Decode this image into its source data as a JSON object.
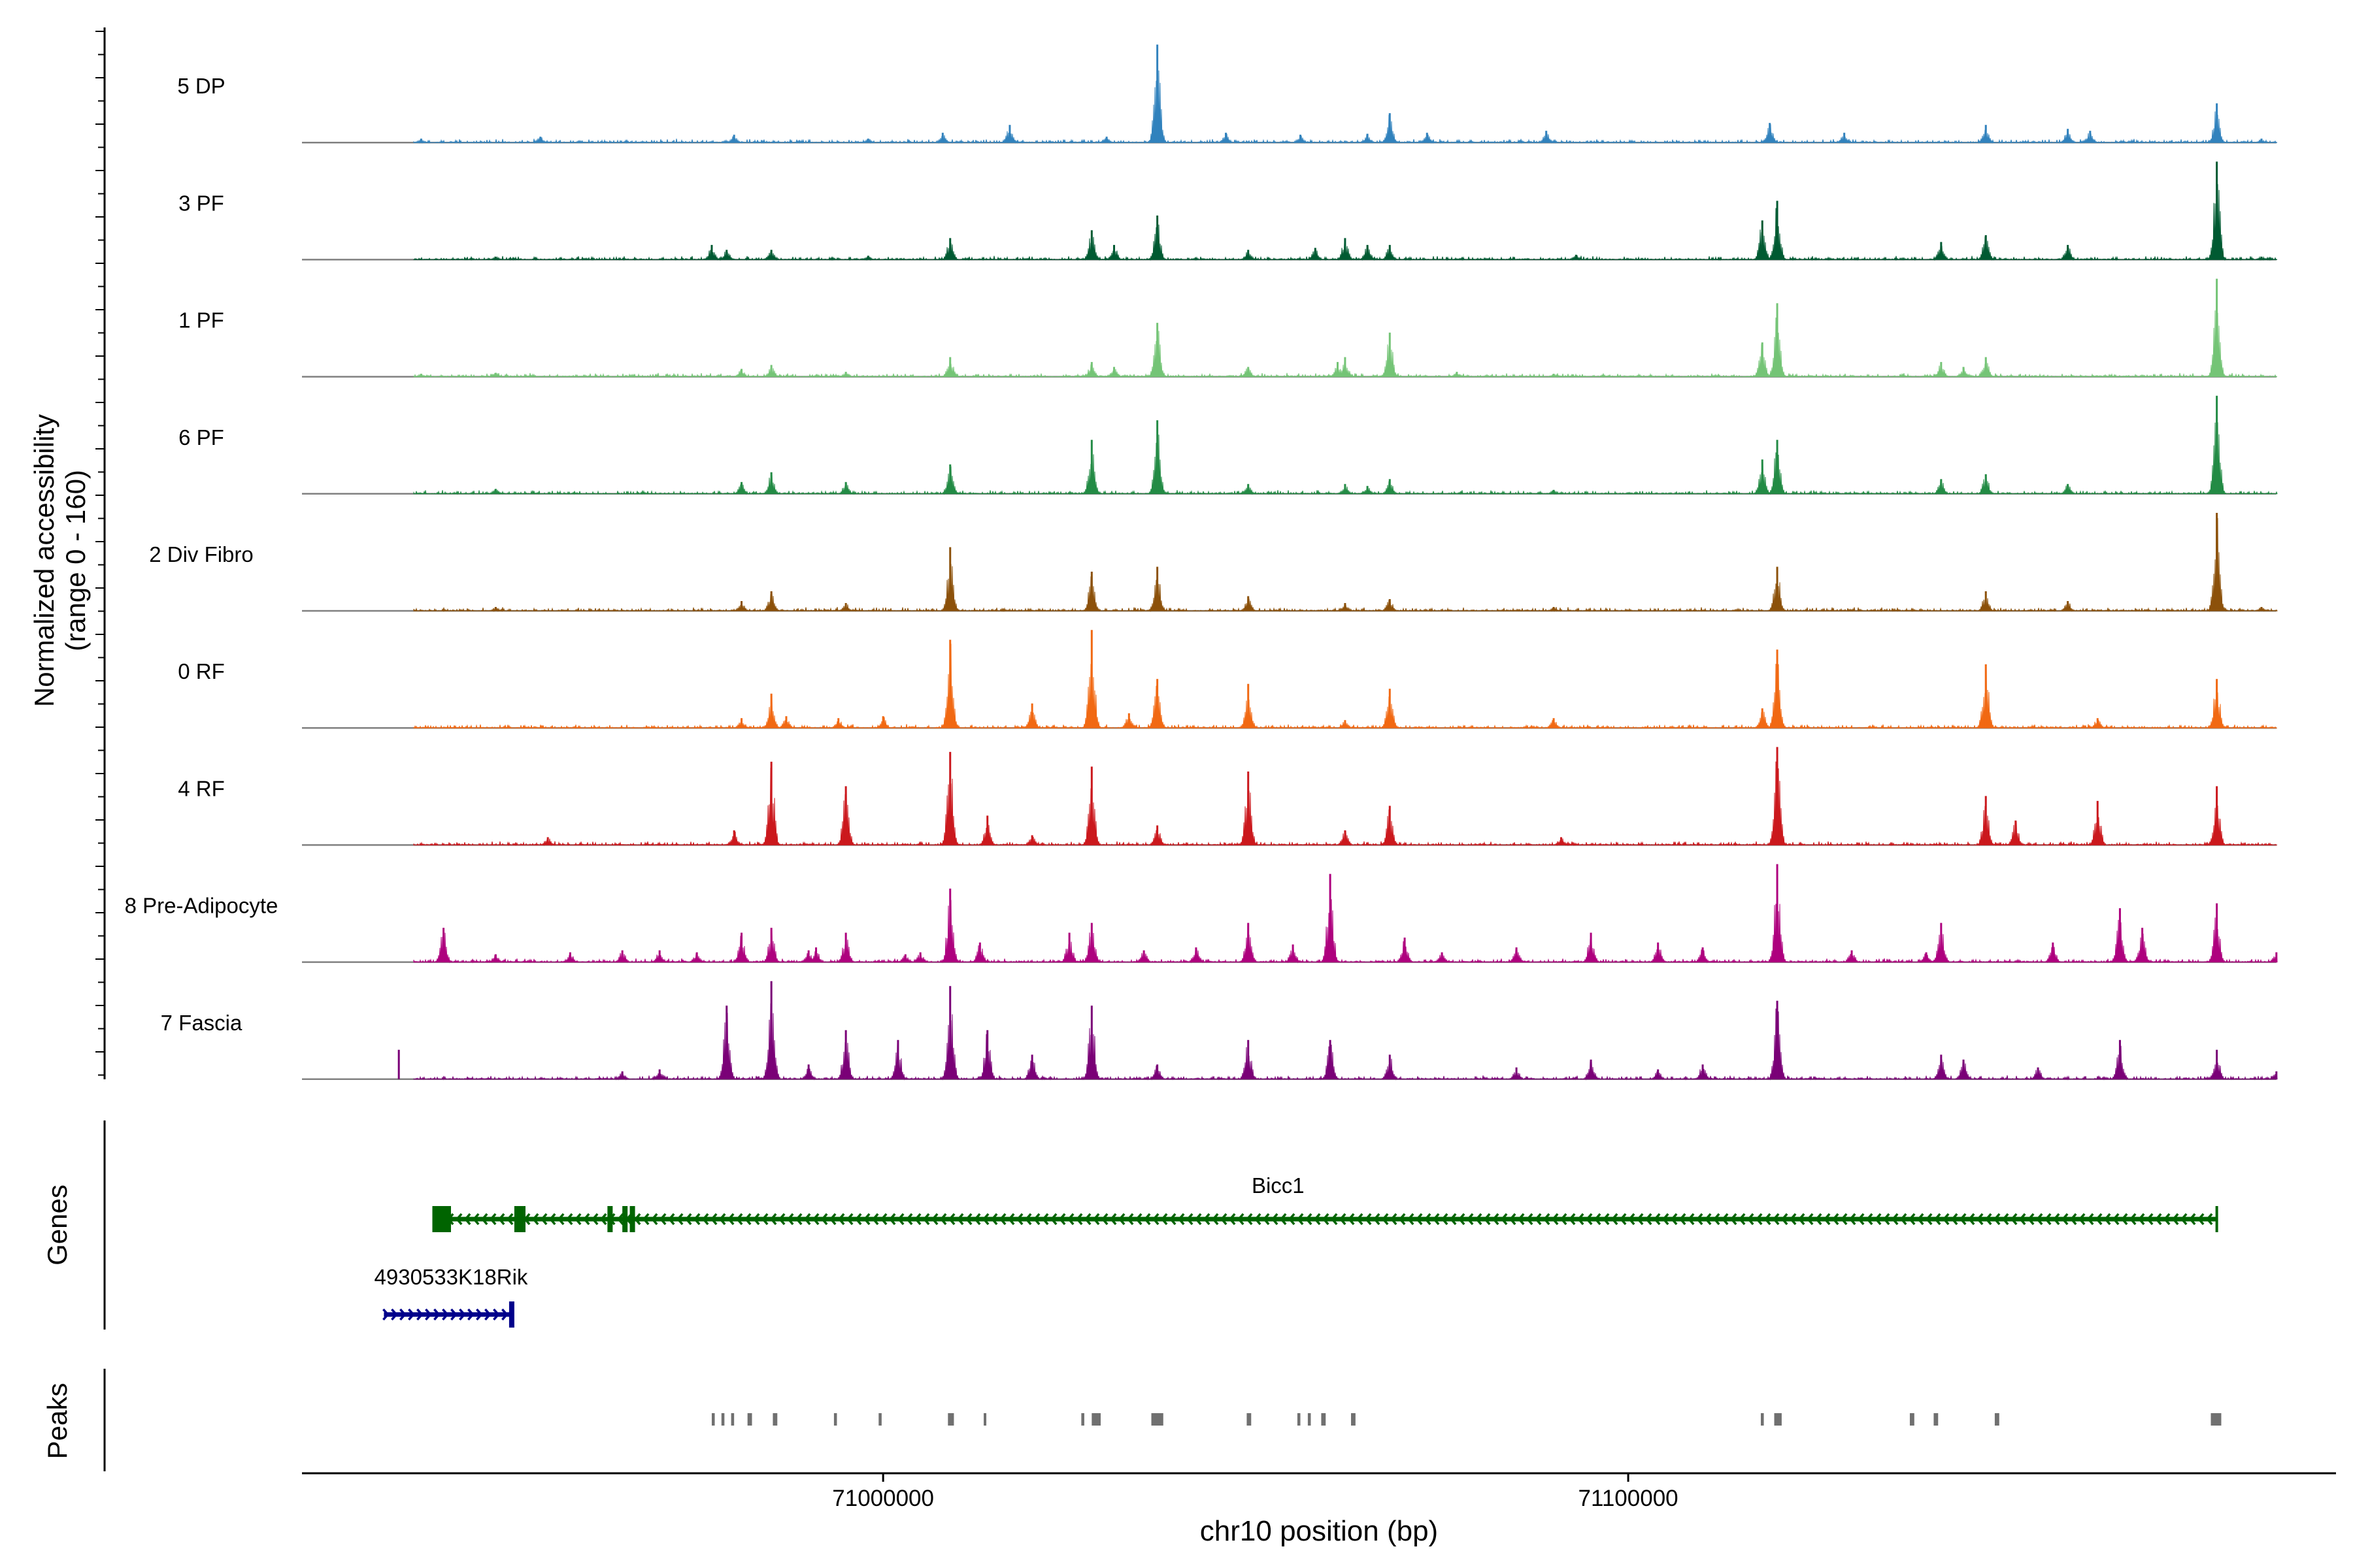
{
  "chart_data": {
    "type": "coverage",
    "xlabel": "chr10 position (bp)",
    "xlim": [
      70922000,
      71195000
    ],
    "x_ticks": [
      {
        "value": 71000000,
        "label": "71000000"
      },
      {
        "value": 71100000,
        "label": "71100000"
      }
    ],
    "y_panels": {
      "coverage_label": [
        "Normalized accessibility",
        "(range 0 - 160)"
      ],
      "coverage_range": [
        0,
        160
      ],
      "genes_label": "Genes",
      "peaks_label": "Peaks"
    },
    "tracks": [
      {
        "name": "5 DP",
        "color": "#3182bd",
        "peaks": [
          [
            71036800,
            100
          ],
          [
            71068000,
            30
          ],
          [
            71179000,
            40
          ],
          [
            71017000,
            18
          ],
          [
            71089000,
            12
          ],
          [
            71008000,
            10
          ],
          [
            71119000,
            20
          ],
          [
            71148000,
            18
          ],
          [
            71159000,
            14
          ],
          [
            71129000,
            10
          ],
          [
            71162000,
            12
          ],
          [
            71046000,
            10
          ],
          [
            71065000,
            9
          ],
          [
            71056000,
            8
          ],
          [
            71073000,
            10
          ],
          [
            70980000,
            8
          ],
          [
            70954000,
            6
          ],
          [
            71030000,
            6
          ],
          [
            70998000,
            4
          ],
          [
            70938000,
            4
          ],
          [
            71185000,
            4
          ]
        ]
      },
      {
        "name": "3 PF",
        "color": "#005a32",
        "peaks": [
          [
            71179000,
            100
          ],
          [
            71120000,
            60
          ],
          [
            71036800,
            45
          ],
          [
            71028000,
            30
          ],
          [
            71118000,
            40
          ],
          [
            71148000,
            25
          ],
          [
            71159000,
            15
          ],
          [
            71142000,
            18
          ],
          [
            71062000,
            22
          ],
          [
            71065000,
            15
          ],
          [
            71068000,
            15
          ],
          [
            71049000,
            10
          ],
          [
            71058000,
            12
          ],
          [
            71009000,
            22
          ],
          [
            70977000,
            15
          ],
          [
            70979000,
            10
          ],
          [
            70985000,
            10
          ],
          [
            71031000,
            15
          ],
          [
            70998000,
            4
          ],
          [
            70948000,
            3
          ],
          [
            71093000,
            5
          ],
          [
            71185000,
            3
          ]
        ]
      },
      {
        "name": "1 PF",
        "color": "#74c476",
        "peaks": [
          [
            71179000,
            100
          ],
          [
            71120000,
            75
          ],
          [
            71036800,
            55
          ],
          [
            71118000,
            35
          ],
          [
            71068000,
            45
          ],
          [
            71061000,
            15
          ],
          [
            71062000,
            20
          ],
          [
            71009000,
            20
          ],
          [
            71028000,
            15
          ],
          [
            71031000,
            10
          ],
          [
            71148000,
            20
          ],
          [
            71145000,
            10
          ],
          [
            71142000,
            15
          ],
          [
            70985000,
            12
          ],
          [
            70981000,
            8
          ],
          [
            70995000,
            5
          ],
          [
            71049000,
            10
          ],
          [
            71077000,
            5
          ],
          [
            70948000,
            4
          ],
          [
            70938000,
            3
          ],
          [
            71090000,
            3
          ]
        ]
      },
      {
        "name": "6 PF",
        "color": "#238b45",
        "peaks": [
          [
            71179000,
            100
          ],
          [
            71120000,
            55
          ],
          [
            71036800,
            75
          ],
          [
            71028000,
            55
          ],
          [
            71118000,
            35
          ],
          [
            71009000,
            30
          ],
          [
            70985000,
            22
          ],
          [
            70981000,
            12
          ],
          [
            70995000,
            12
          ],
          [
            71148000,
            20
          ],
          [
            71142000,
            15
          ],
          [
            71159000,
            10
          ],
          [
            71049000,
            10
          ],
          [
            71062000,
            10
          ],
          [
            71068000,
            15
          ],
          [
            70948000,
            5
          ],
          [
            71065000,
            8
          ],
          [
            71090000,
            4
          ]
        ]
      },
      {
        "name": "2 Div Fibro",
        "color": "#8c510a",
        "peaks": [
          [
            71179000,
            100
          ],
          [
            71120000,
            45
          ],
          [
            71036800,
            45
          ],
          [
            71028000,
            40
          ],
          [
            71009000,
            65
          ],
          [
            70985000,
            20
          ],
          [
            70981000,
            10
          ],
          [
            70995000,
            8
          ],
          [
            71148000,
            20
          ],
          [
            71159000,
            10
          ],
          [
            71049000,
            15
          ],
          [
            71068000,
            12
          ],
          [
            71062000,
            8
          ],
          [
            70948000,
            4
          ],
          [
            71090000,
            4
          ],
          [
            71185000,
            4
          ]
        ]
      },
      {
        "name": "0 RF",
        "color": "#f16913",
        "peaks": [
          [
            71028000,
            100
          ],
          [
            71009000,
            90
          ],
          [
            71120000,
            80
          ],
          [
            71148000,
            65
          ],
          [
            71179000,
            50
          ],
          [
            71036800,
            50
          ],
          [
            71049000,
            45
          ],
          [
            71068000,
            40
          ],
          [
            70985000,
            35
          ],
          [
            71020000,
            25
          ],
          [
            71118000,
            20
          ],
          [
            70987000,
            12
          ],
          [
            70981000,
            10
          ],
          [
            70994000,
            10
          ],
          [
            71000000,
            12
          ],
          [
            71062000,
            8
          ],
          [
            71090000,
            10
          ],
          [
            71163000,
            10
          ],
          [
            71033000,
            15
          ]
        ]
      },
      {
        "name": "4 RF",
        "color": "#cb181d",
        "peaks": [
          [
            71120000,
            100
          ],
          [
            71028000,
            80
          ],
          [
            70985000,
            85
          ],
          [
            71009000,
            95
          ],
          [
            71049000,
            75
          ],
          [
            70995000,
            60
          ],
          [
            71148000,
            50
          ],
          [
            71179000,
            60
          ],
          [
            71163000,
            45
          ],
          [
            71068000,
            40
          ],
          [
            71014000,
            30
          ],
          [
            71036800,
            20
          ],
          [
            70980000,
            15
          ],
          [
            71062000,
            15
          ],
          [
            71152000,
            25
          ],
          [
            70955000,
            8
          ],
          [
            71091000,
            8
          ],
          [
            71020000,
            10
          ]
        ]
      },
      {
        "name": "8 Pre-Adipocyte",
        "color": "#ae017e",
        "peaks": [
          [
            71120000,
            100
          ],
          [
            71060000,
            90
          ],
          [
            71009000,
            75
          ],
          [
            71028000,
            40
          ],
          [
            71049000,
            40
          ],
          [
            70941000,
            35
          ],
          [
            70981000,
            30
          ],
          [
            70985000,
            35
          ],
          [
            70995000,
            30
          ],
          [
            71166000,
            55
          ],
          [
            71169000,
            35
          ],
          [
            71179000,
            60
          ],
          [
            71142000,
            40
          ],
          [
            71095000,
            30
          ],
          [
            71025000,
            30
          ],
          [
            71013000,
            20
          ],
          [
            71070000,
            25
          ],
          [
            71104000,
            20
          ],
          [
            71157000,
            20
          ],
          [
            70965000,
            12
          ],
          [
            71042000,
            15
          ],
          [
            71055000,
            18
          ],
          [
            71110000,
            15
          ],
          [
            71187000,
            10
          ],
          [
            70970000,
            12
          ],
          [
            71085000,
            15
          ],
          [
            71005000,
            10
          ],
          [
            70991000,
            15
          ],
          [
            70975000,
            10
          ],
          [
            70958000,
            10
          ],
          [
            71035000,
            12
          ],
          [
            70948000,
            8
          ],
          [
            70990000,
            12
          ],
          [
            71075000,
            10
          ],
          [
            71130000,
            12
          ],
          [
            71140000,
            10
          ],
          [
            71003000,
            8
          ]
        ]
      },
      {
        "name": "7 Fascia",
        "color": "#7a0177",
        "peaks": [
          [
            70985000,
            100
          ],
          [
            71009000,
            95
          ],
          [
            70979000,
            75
          ],
          [
            71028000,
            75
          ],
          [
            70995000,
            50
          ],
          [
            71014000,
            50
          ],
          [
            71020000,
            25
          ],
          [
            70935000,
            30
          ],
          [
            71120000,
            80
          ],
          [
            71166000,
            40
          ],
          [
            71049000,
            40
          ],
          [
            71060000,
            40
          ],
          [
            71179000,
            30
          ],
          [
            71068000,
            25
          ],
          [
            71002000,
            40
          ],
          [
            71142000,
            25
          ],
          [
            71145000,
            20
          ],
          [
            71095000,
            20
          ],
          [
            71036800,
            15
          ],
          [
            71110000,
            15
          ],
          [
            71104000,
            10
          ],
          [
            70990000,
            15
          ],
          [
            70970000,
            10
          ],
          [
            70965000,
            8
          ],
          [
            71085000,
            12
          ],
          [
            71155000,
            12
          ],
          [
            71187000,
            8
          ]
        ]
      }
    ],
    "genes": [
      {
        "name": "Bicc1",
        "strand": "-",
        "start": 70940000,
        "end": 71179000,
        "color": "#006400",
        "exons": [
          [
            70939500,
            70942000
          ],
          [
            70950500,
            70952000
          ],
          [
            70963000,
            70963700
          ],
          [
            70965000,
            70965700
          ],
          [
            70966000,
            70966600
          ]
        ]
      },
      {
        "name": "4930533K18Rik",
        "strand": "+",
        "start": 70933000,
        "end": 70950000,
        "color": "#00008b",
        "exons": [
          [
            70949800,
            70950200
          ]
        ]
      }
    ],
    "peaks_track": {
      "color": "#707070",
      "regions": [
        [
          70977000,
          70977400
        ],
        [
          70978300,
          70978700
        ],
        [
          70979600,
          70980000
        ],
        [
          70981800,
          70982400
        ],
        [
          70985200,
          70985800
        ],
        [
          70993400,
          70993800
        ],
        [
          70999400,
          70999800
        ],
        [
          71008700,
          71009500
        ],
        [
          71013500,
          71013700
        ],
        [
          71026600,
          71027000
        ],
        [
          71028000,
          71029200
        ],
        [
          71036000,
          71037600
        ],
        [
          71048800,
          71049400
        ],
        [
          71055600,
          71056000
        ],
        [
          71057000,
          71057400
        ],
        [
          71058800,
          71059400
        ],
        [
          71062800,
          71063400
        ],
        [
          71117800,
          71118200
        ],
        [
          71119600,
          71120600
        ],
        [
          71137800,
          71138400
        ],
        [
          71141000,
          71141600
        ],
        [
          71149200,
          71149800
        ],
        [
          71178200,
          71179600
        ]
      ]
    }
  }
}
